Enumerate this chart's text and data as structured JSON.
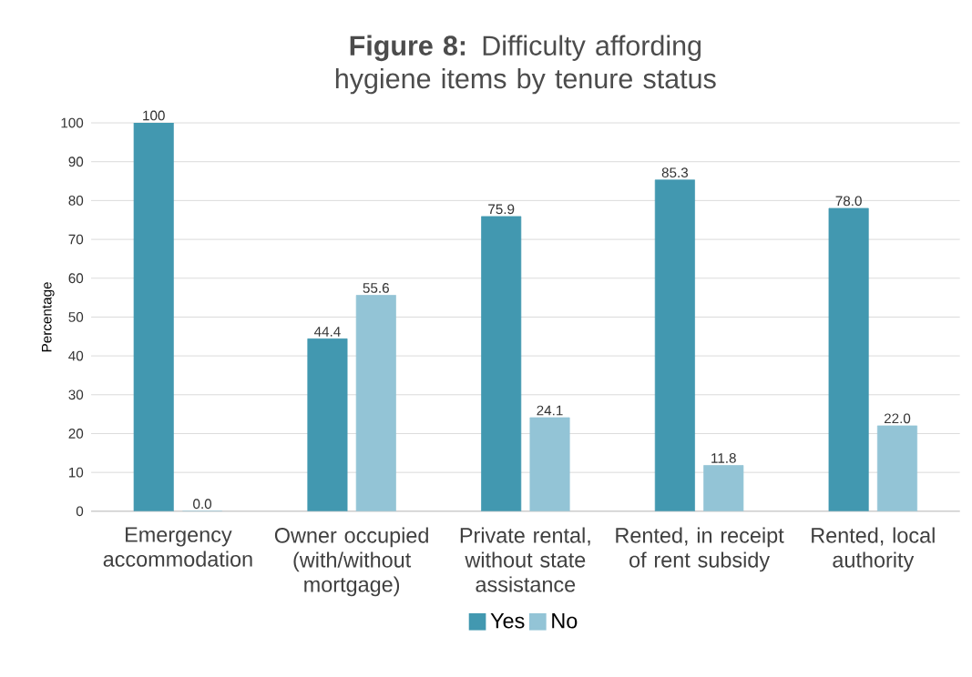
{
  "chart_data": {
    "type": "bar",
    "title": "**Figure 8:** Difficulty affording hygiene items by tenure status",
    "ylabel": "Percentage",
    "categories": [
      "Emergency accommodation",
      "Owner occupied (with/without mortgage)",
      "Private rental, without state assistance",
      "Rented, in receipt of rent subsidy",
      "Rented, local authority"
    ],
    "series": [
      {
        "name": "Yes",
        "color": "#4298b0",
        "values": [
          100,
          44.4,
          75.9,
          85.3,
          78.0
        ],
        "value_labels": [
          "100",
          "44.4",
          "75.9",
          "85.3",
          "78.0"
        ]
      },
      {
        "name": "No",
        "color": "#93c4d6",
        "values": [
          0.0,
          55.6,
          24.1,
          11.8,
          22.0
        ],
        "value_labels": [
          "0.0",
          "55.6",
          "24.1",
          "11.8",
          "22.0"
        ]
      }
    ],
    "ylim": [
      0,
      100
    ],
    "yticks": [
      0,
      10,
      20,
      30,
      40,
      50,
      60,
      70,
      80,
      90,
      100
    ],
    "grid": "y",
    "legend": "bottom"
  }
}
